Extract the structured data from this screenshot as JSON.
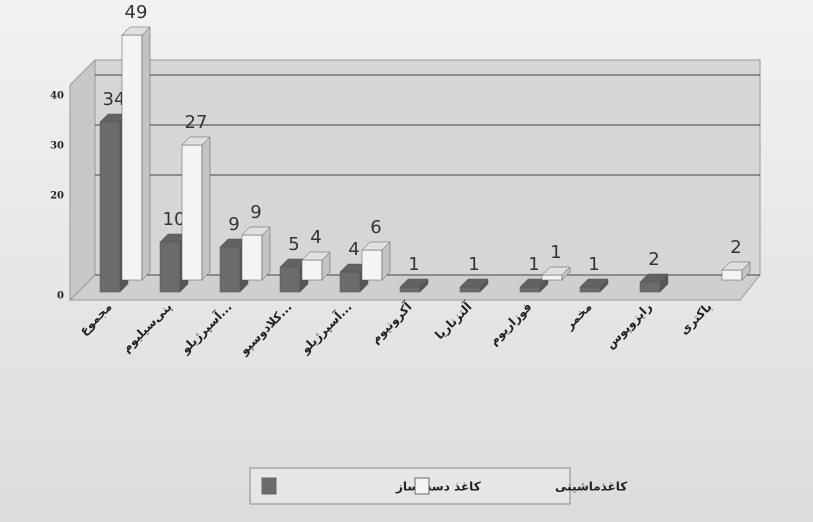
{
  "chart_data": {
    "type": "bar3d",
    "categories": [
      "مجموع",
      "پنی‌سیلیوم",
      "آسپرژیلو...",
      "کلادوسپو...",
      "آسپرژیلو...",
      "آکرونیوم",
      "آلتزناریا",
      "فوزاریوم",
      "مخمر",
      "رایزوپوس",
      "باکتری"
    ],
    "series": [
      {
        "name": "کاغذ دست‌ساز",
        "color": "#6b6b6b",
        "values": [
          34,
          10,
          9,
          5,
          4,
          1,
          1,
          1,
          1,
          2,
          null
        ]
      },
      {
        "name": "کاغذماشینی",
        "color": "#f4f4f4",
        "values": [
          49,
          27,
          9,
          4,
          6,
          null,
          null,
          1,
          null,
          null,
          2
        ]
      }
    ],
    "ylim": [
      0,
      40
    ],
    "yticks": [
      0,
      20,
      30,
      40
    ],
    "grid": true,
    "legend": "bottom"
  }
}
